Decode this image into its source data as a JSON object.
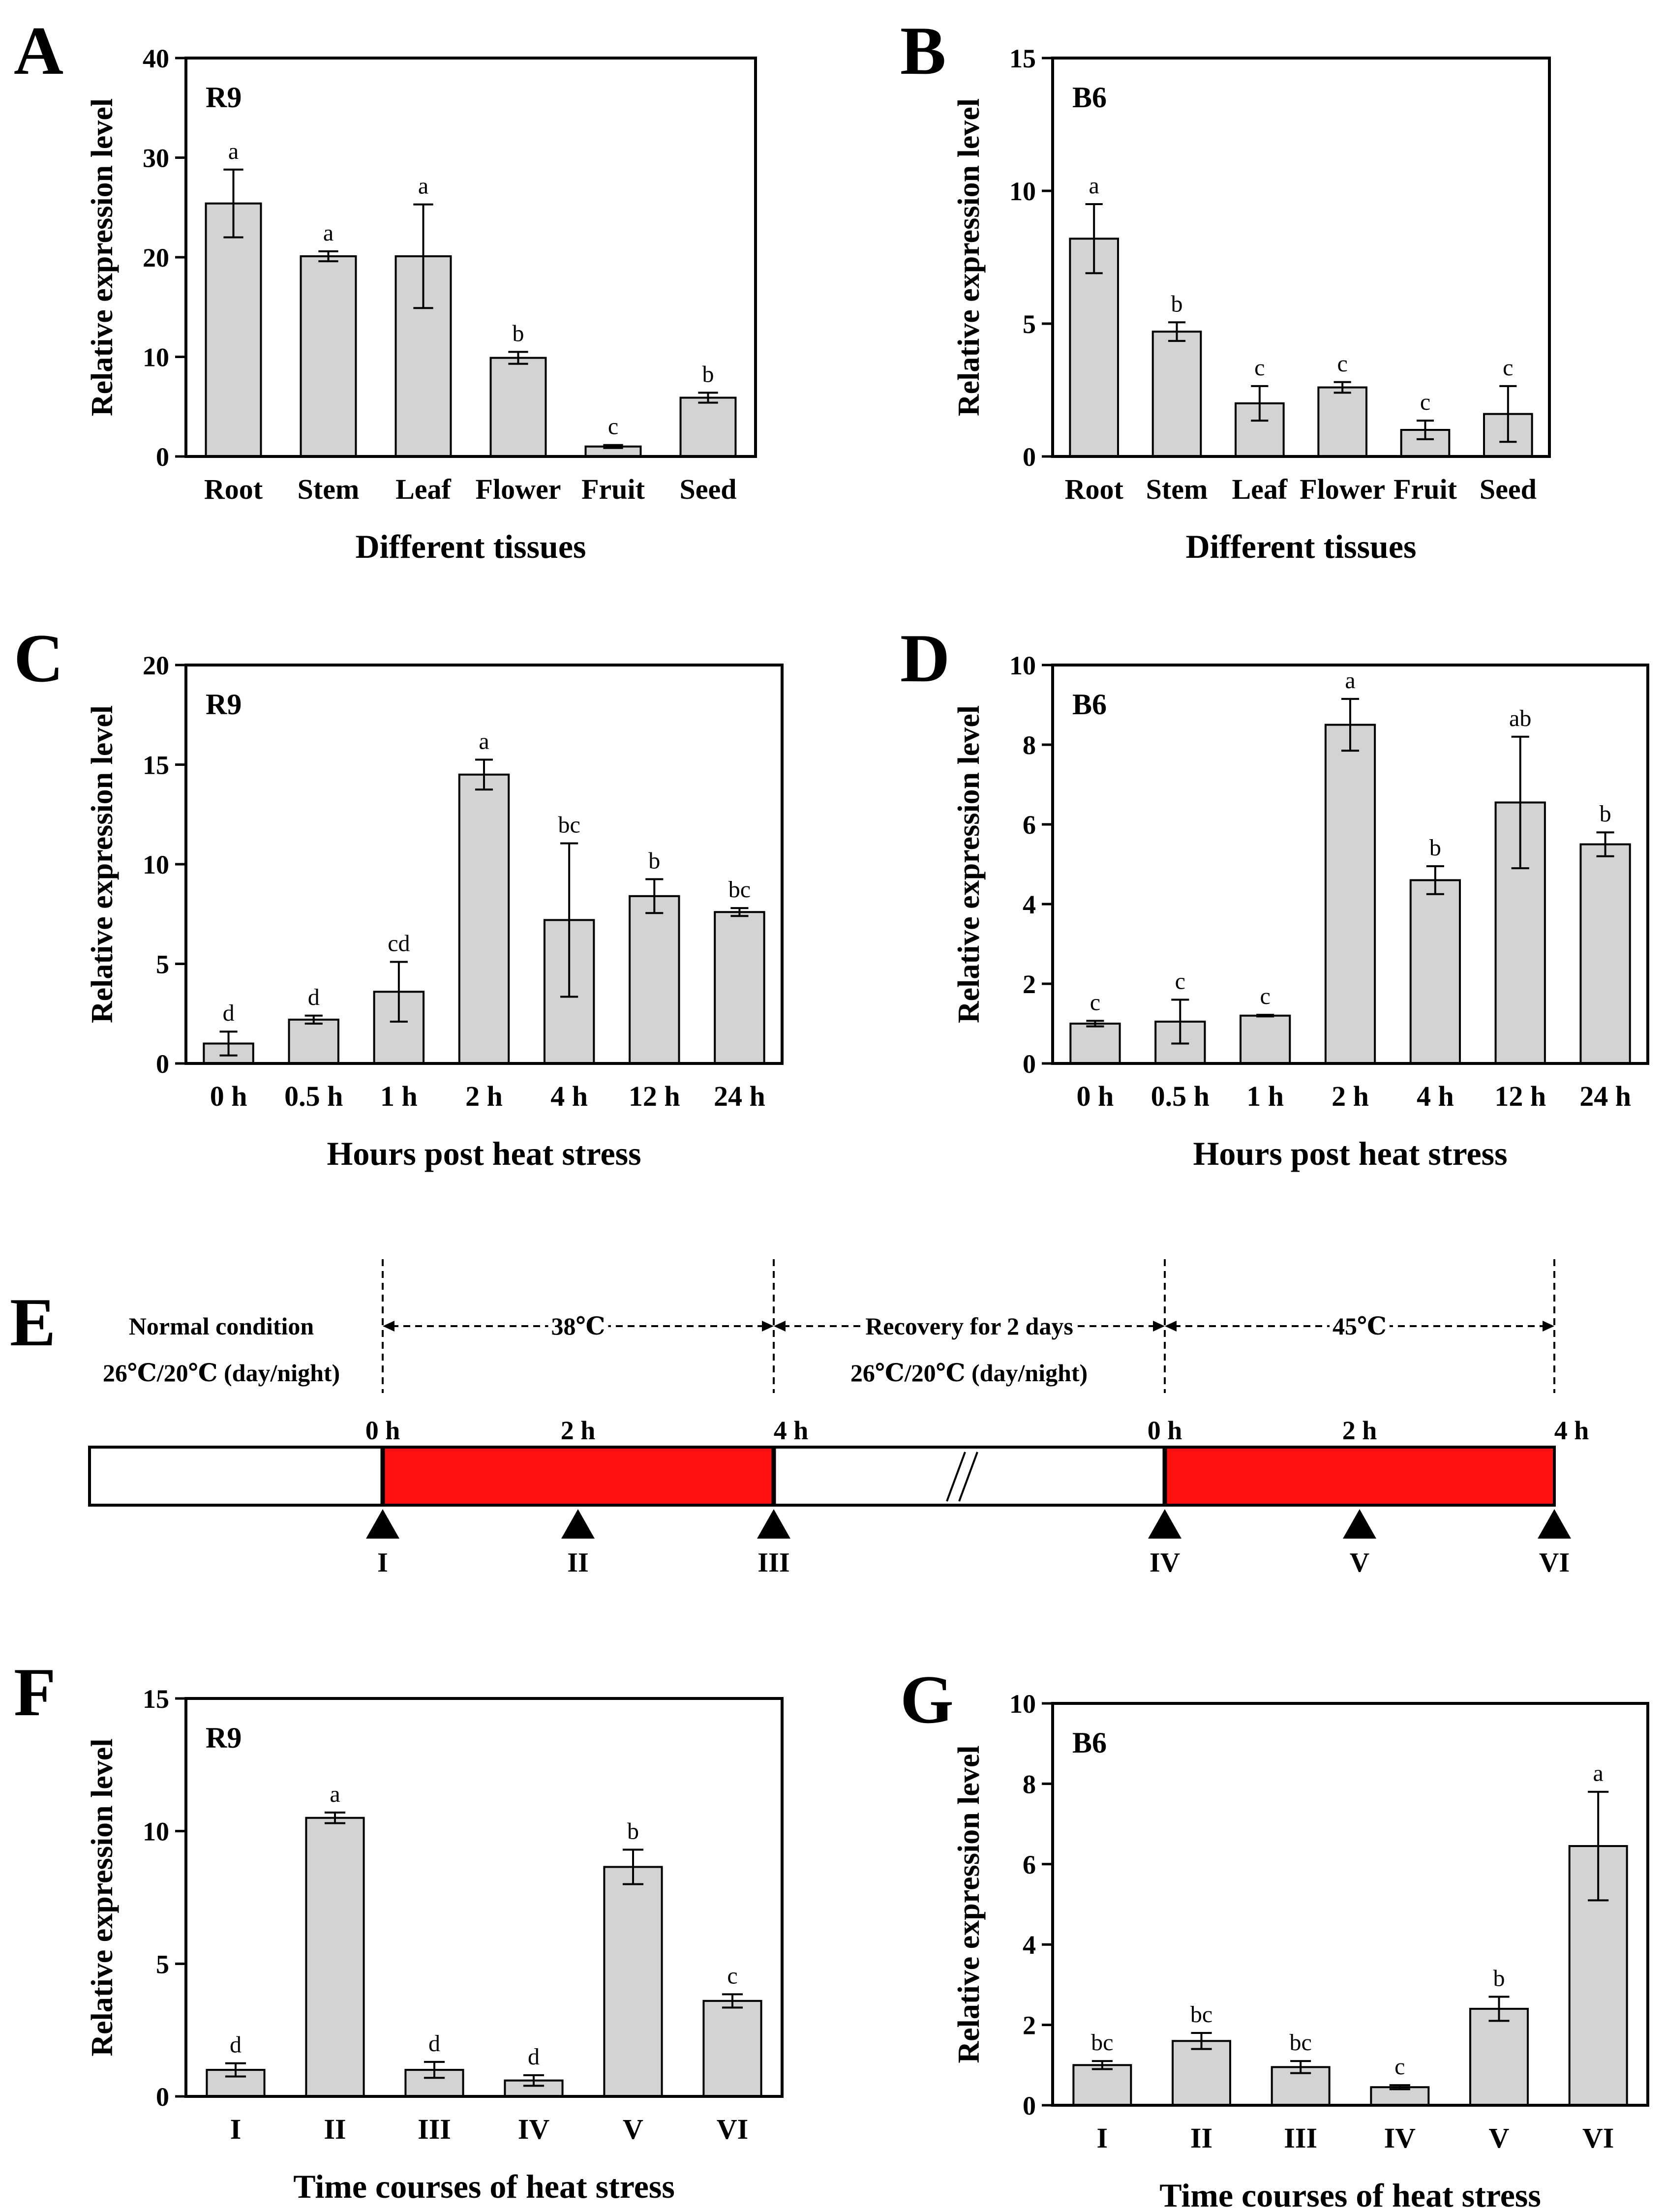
{
  "chart_data": [
    {
      "panel": "A",
      "type": "bar",
      "label": "R9",
      "xlabel": "Different tissues",
      "ylabel": "Relative expression level",
      "ylim": [
        0,
        40
      ],
      "yticks": [
        0,
        10,
        20,
        30,
        40
      ],
      "categories": [
        "Root",
        "Stem",
        "Leaf",
        "Flower",
        "Fruit",
        "Seed"
      ],
      "values": [
        25.4,
        20.1,
        20.1,
        9.9,
        1.0,
        5.9
      ],
      "errors": [
        3.4,
        0.5,
        5.2,
        0.6,
        0.15,
        0.5
      ],
      "significance": [
        "a",
        "a",
        "a",
        "b",
        "c",
        "b"
      ]
    },
    {
      "panel": "B",
      "type": "bar",
      "label": "B6",
      "xlabel": "Different tissues",
      "ylabel": "Relative expression level",
      "ylim": [
        0,
        15
      ],
      "yticks": [
        0,
        5,
        10,
        15
      ],
      "categories": [
        "Root",
        "Stem",
        "Leaf",
        "Flower",
        "Fruit",
        "Seed"
      ],
      "values": [
        8.2,
        4.7,
        2.0,
        2.6,
        1.0,
        1.6
      ],
      "errors": [
        1.3,
        0.35,
        0.65,
        0.2,
        0.35,
        1.05
      ],
      "significance": [
        "a",
        "b",
        "c",
        "c",
        "c",
        "c"
      ]
    },
    {
      "panel": "C",
      "type": "bar",
      "label": "R9",
      "xlabel": "Hours post heat stress",
      "ylabel": "Relative expression level",
      "ylim": [
        0,
        20
      ],
      "yticks": [
        0,
        5,
        10,
        15,
        20
      ],
      "categories": [
        "0 h",
        "0.5 h",
        "1 h",
        "2 h",
        "4 h",
        "12 h",
        "24 h"
      ],
      "values": [
        1.0,
        2.2,
        3.6,
        14.5,
        7.2,
        8.4,
        7.6
      ],
      "errors": [
        0.6,
        0.2,
        1.5,
        0.75,
        3.85,
        0.85,
        0.2
      ],
      "significance": [
        "d",
        "d",
        "cd",
        "a",
        "bc",
        "b",
        "bc"
      ]
    },
    {
      "panel": "D",
      "type": "bar",
      "label": "B6",
      "xlabel": "Hours post heat stress",
      "ylabel": "Relative expression level",
      "ylim": [
        0,
        10
      ],
      "yticks": [
        0,
        2,
        4,
        6,
        8,
        10
      ],
      "categories": [
        "0 h",
        "0.5 h",
        "1 h",
        "2 h",
        "4 h",
        "12 h",
        "24 h"
      ],
      "values": [
        1.0,
        1.05,
        1.2,
        8.5,
        4.6,
        6.55,
        5.5
      ],
      "errors": [
        0.07,
        0.55,
        0.02,
        0.65,
        0.35,
        1.65,
        0.3
      ],
      "significance": [
        "c",
        "c",
        "c",
        "a",
        "b",
        "ab",
        "b"
      ]
    },
    {
      "panel": "F",
      "type": "bar",
      "label": "R9",
      "xlabel": "Time courses of  heat stress",
      "ylabel": "Relative expression level",
      "ylim": [
        0,
        15
      ],
      "yticks": [
        0,
        5,
        10,
        15
      ],
      "categories": [
        "I",
        "II",
        "III",
        "IV",
        "V",
        "VI"
      ],
      "values": [
        1.0,
        10.5,
        1.0,
        0.6,
        8.65,
        3.6
      ],
      "errors": [
        0.25,
        0.2,
        0.3,
        0.2,
        0.65,
        0.25
      ],
      "significance": [
        "d",
        "a",
        "d",
        "d",
        "b",
        "c"
      ]
    },
    {
      "panel": "G",
      "type": "bar",
      "label": "B6",
      "xlabel": "Time courses of  heat stress",
      "ylabel": "Relative expression level",
      "ylim": [
        0,
        10
      ],
      "yticks": [
        0,
        2,
        4,
        6,
        8,
        10
      ],
      "categories": [
        "I",
        "II",
        "III",
        "IV",
        "V",
        "VI"
      ],
      "values": [
        1.0,
        1.6,
        0.95,
        0.45,
        2.4,
        6.45
      ],
      "errors": [
        0.1,
        0.2,
        0.15,
        0.05,
        0.3,
        1.35
      ],
      "significance": [
        "bc",
        "bc",
        "bc",
        "c",
        "b",
        "a"
      ]
    }
  ],
  "timeline": {
    "panel": "E",
    "normal_title": "Normal condition",
    "normal_temp": "26℃/20℃ (day/night)",
    "phase1_temp": "38℃",
    "recovery_title": "Recovery for 2 days",
    "recovery_temp": "26℃/20℃ (day/night)",
    "phase2_temp": "45℃",
    "hours": [
      "0 h",
      "2 h",
      "4 h",
      "0 h",
      "2 h",
      "4 h"
    ],
    "points": [
      "I",
      "II",
      "III",
      "IV",
      "V",
      "VI"
    ]
  }
}
